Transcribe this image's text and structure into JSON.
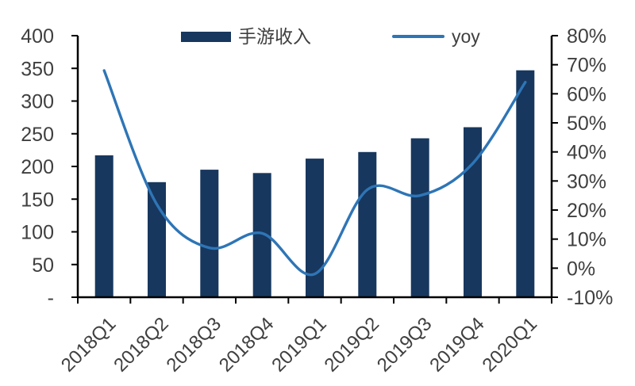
{
  "chart_data": {
    "type": "combo_bar_line",
    "categories": [
      "2018Q1",
      "2018Q2",
      "2018Q3",
      "2018Q4",
      "2019Q1",
      "2019Q2",
      "2019Q3",
      "2019Q4",
      "2020Q1"
    ],
    "series": [
      {
        "name": "手游收入",
        "type": "bar",
        "y_axis": "left",
        "color": "#17375E",
        "values": [
          217,
          176,
          195,
          190,
          212,
          222,
          243,
          260,
          347
        ]
      },
      {
        "name": "yoy",
        "type": "line",
        "y_axis": "right",
        "color": "#2E75B6",
        "values_percent": [
          68,
          22,
          7,
          12,
          -2,
          27,
          25,
          36,
          64
        ]
      }
    ],
    "left_axis": {
      "range": [
        0,
        400
      ],
      "step": 50,
      "tick_labels": [
        "400",
        "350",
        "300",
        "250",
        "200",
        "150",
        "100",
        "50",
        "-"
      ]
    },
    "right_axis": {
      "range": [
        -10,
        80
      ],
      "step": 10,
      "tick_labels": [
        "80%",
        "70%",
        "60%",
        "50%",
        "40%",
        "30%",
        "20%",
        "10%",
        "0%",
        "-10%"
      ]
    },
    "x_label_rotation_deg": -45,
    "grid": false,
    "legend_position": "top",
    "colors": {
      "background": "#FFFFFF",
      "axis_line": "#000000",
      "tick_text": "#3f3f3f"
    }
  }
}
